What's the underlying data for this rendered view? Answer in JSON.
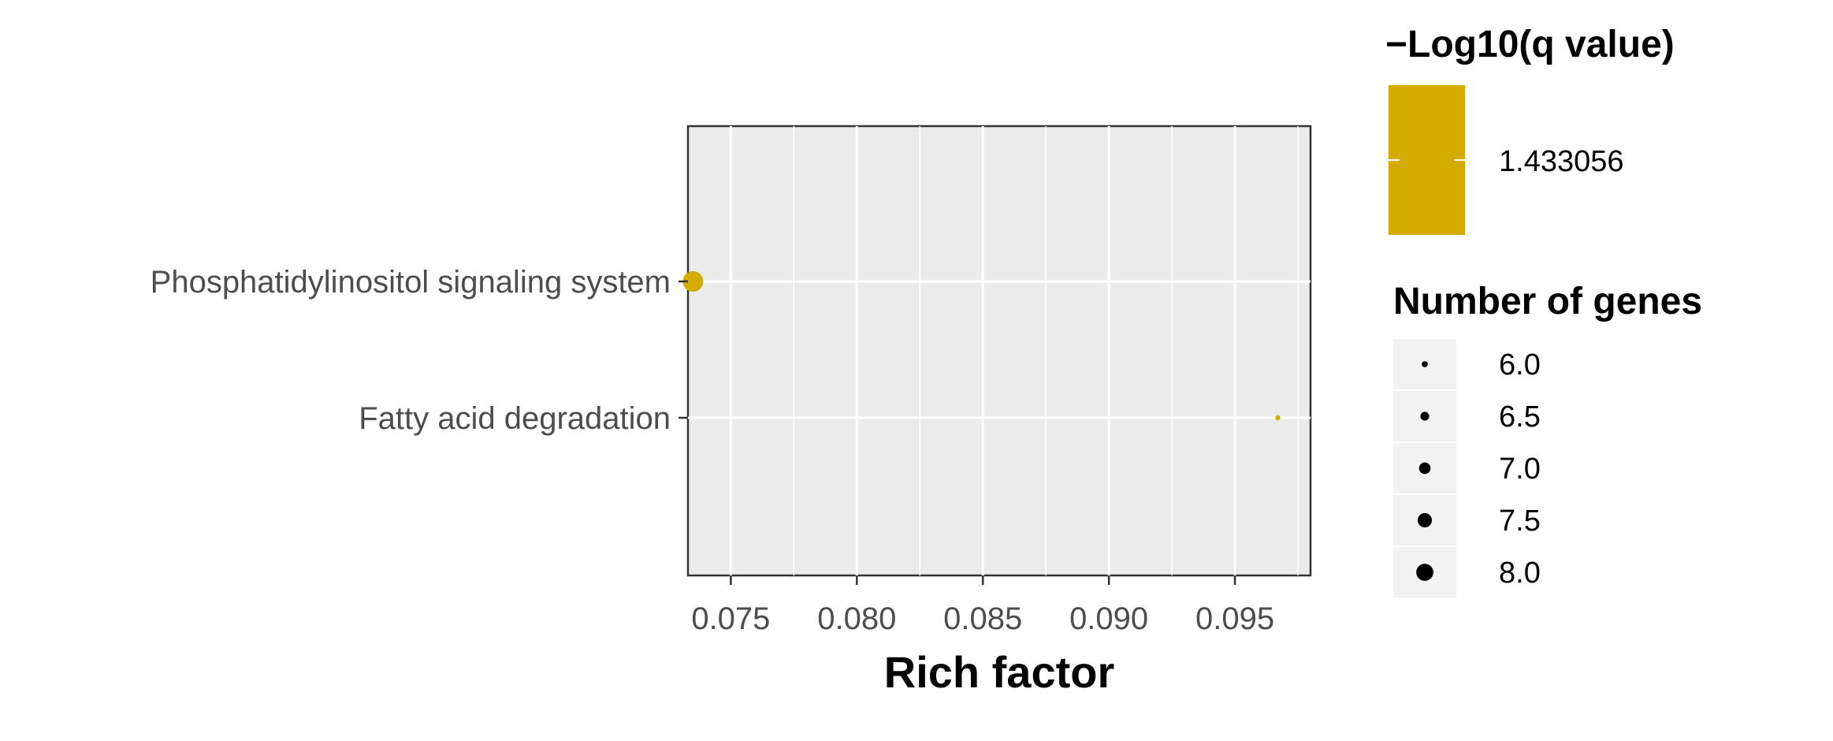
{
  "chart_data": {
    "type": "scatter",
    "xlabel": "Rich factor",
    "ylabel": "",
    "xlim": [
      0.0733,
      0.098
    ],
    "x_ticks": [
      "0.075",
      "0.080",
      "0.085",
      "0.090",
      "0.095"
    ],
    "x_tick_values": [
      0.075,
      0.08,
      0.085,
      0.09,
      0.095
    ],
    "categories": [
      "Phosphatidylinositol signaling system",
      "Fatty acid degradation"
    ],
    "points": [
      {
        "category": "Phosphatidylinositol signaling system",
        "x": 0.0735,
        "genes": 8,
        "q_log": 1.433056
      },
      {
        "category": "Fatty acid degradation",
        "x": 0.0967,
        "genes": 6,
        "q_log": 1.433056
      }
    ],
    "grid": true,
    "point_color": "#d4ac00",
    "panel_color": "#ebebeb",
    "legend_position": "right",
    "color_legend": {
      "title": "−Log10(q value)",
      "label": "1.433056"
    },
    "size_legend": {
      "title": "Number of genes",
      "labels": [
        "6.0",
        "6.5",
        "7.0",
        "7.5",
        "8.0"
      ],
      "values": [
        6.0,
        6.5,
        7.0,
        7.5,
        8.0
      ]
    }
  }
}
